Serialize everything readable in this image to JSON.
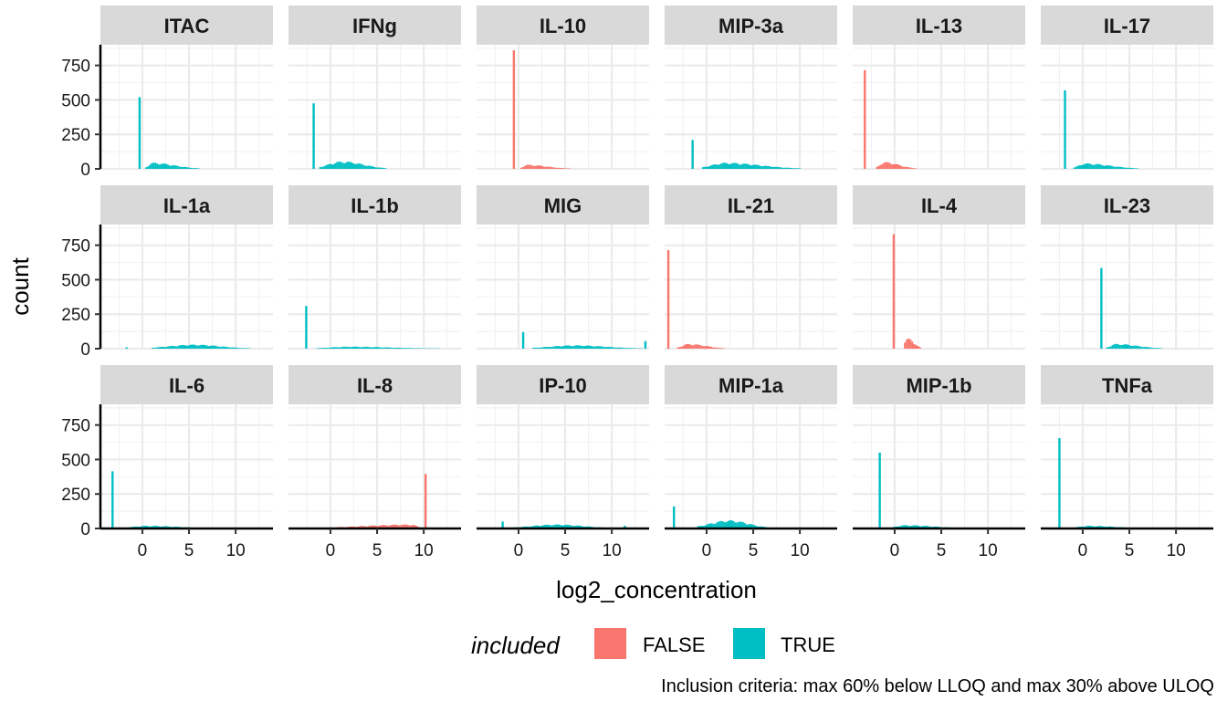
{
  "chart_data": {
    "type": "bar",
    "subtype": "faceted histogram",
    "xlabel": "log2_concentration",
    "ylabel": "count",
    "xlim": [
      -4.5,
      14
    ],
    "ylim": [
      0,
      900
    ],
    "x_ticks": [
      0,
      5,
      10
    ],
    "y_ticks": [
      0,
      250,
      500,
      750
    ],
    "x_tick_labels": [
      "0",
      "5",
      "10"
    ],
    "y_tick_labels": [
      "0",
      "250",
      "500",
      "750"
    ],
    "grid": true,
    "legend": {
      "title": "included",
      "position": "bottom",
      "entries": [
        {
          "label": "FALSE",
          "color": "#F8766D"
        },
        {
          "label": "TRUE",
          "color": "#00BFC4"
        }
      ]
    },
    "caption": "Inclusion criteria: max 60% below LLOQ and max 30% above ULOQ",
    "facets": [
      {
        "name": "ITAC",
        "included": true,
        "spikes": [
          {
            "x": -0.3,
            "count": 520
          }
        ],
        "body": {
          "from": 0.3,
          "to": 6,
          "peak": 45,
          "center": 1.0
        }
      },
      {
        "name": "IFNg",
        "included": true,
        "spikes": [
          {
            "x": -1.8,
            "count": 475
          }
        ],
        "body": {
          "from": -1.2,
          "to": 6,
          "peak": 55,
          "center": 1.2
        }
      },
      {
        "name": "IL-10",
        "included": false,
        "spikes": [
          {
            "x": -0.5,
            "count": 860
          }
        ],
        "body": {
          "from": 0.2,
          "to": 5.5,
          "peak": 30,
          "center": 0.8
        }
      },
      {
        "name": "MIP-3a",
        "included": true,
        "spikes": [
          {
            "x": -1.5,
            "count": 210
          }
        ],
        "body": {
          "from": -0.5,
          "to": 10,
          "peak": 45,
          "center": 2.0
        }
      },
      {
        "name": "IL-13",
        "included": false,
        "spikes": [
          {
            "x": -3.2,
            "count": 715
          }
        ],
        "body": {
          "from": -2.0,
          "to": 2.2,
          "peak": 50,
          "center": -1.2
        }
      },
      {
        "name": "IL-17",
        "included": true,
        "spikes": [
          {
            "x": -1.9,
            "count": 570
          }
        ],
        "body": {
          "from": -1.0,
          "to": 6,
          "peak": 40,
          "center": 0.2
        }
      },
      {
        "name": "IL-1a",
        "included": true,
        "spikes": [
          {
            "x": -1.7,
            "count": 10
          }
        ],
        "body": {
          "from": 1.0,
          "to": 11.5,
          "peak": 30,
          "center": 5.5
        }
      },
      {
        "name": "IL-1b",
        "included": true,
        "spikes": [
          {
            "x": -2.6,
            "count": 310
          }
        ],
        "body": {
          "from": -1.5,
          "to": 11.5,
          "peak": 15,
          "center": 2.0
        }
      },
      {
        "name": "MIG",
        "included": true,
        "spikes": [
          {
            "x": 0.5,
            "count": 120
          },
          {
            "x": 13.6,
            "count": 55
          }
        ],
        "body": {
          "from": 1.5,
          "to": 13.2,
          "peak": 25,
          "center": 6.0
        }
      },
      {
        "name": "IL-21",
        "included": false,
        "spikes": [
          {
            "x": -4.1,
            "count": 715
          }
        ],
        "body": {
          "from": -3.2,
          "to": 2.0,
          "peak": 35,
          "center": -2.0
        }
      },
      {
        "name": "IL-4",
        "included": false,
        "spikes": [
          {
            "x": -0.1,
            "count": 830
          }
        ],
        "body": {
          "from": 1.0,
          "to": 2.8,
          "peak": 75,
          "center": 1.3
        }
      },
      {
        "name": "IL-23",
        "included": true,
        "spikes": [
          {
            "x": 2.0,
            "count": 585
          }
        ],
        "body": {
          "from": 2.5,
          "to": 8.5,
          "peak": 35,
          "center": 3.5
        }
      },
      {
        "name": "IL-6",
        "included": true,
        "spikes": [
          {
            "x": -3.2,
            "count": 415
          }
        ],
        "body": {
          "from": -2.3,
          "to": 8,
          "peak": 20,
          "center": 0.5
        }
      },
      {
        "name": "IL-8",
        "included": false,
        "spikes": [
          {
            "x": 10.2,
            "count": 395
          }
        ],
        "body": {
          "from": 0.0,
          "to": 10.0,
          "peak": 30,
          "center": 8.5
        }
      },
      {
        "name": "IP-10",
        "included": true,
        "spikes": [
          {
            "x": -1.7,
            "count": 50
          },
          {
            "x": 11.4,
            "count": 20
          }
        ],
        "body": {
          "from": -0.5,
          "to": 10.5,
          "peak": 30,
          "center": 4.0
        }
      },
      {
        "name": "MIP-1a",
        "included": true,
        "spikes": [
          {
            "x": -3.5,
            "count": 160
          }
        ],
        "body": {
          "from": -1.0,
          "to": 7,
          "peak": 60,
          "center": 2.3
        }
      },
      {
        "name": "MIP-1b",
        "included": true,
        "spikes": [
          {
            "x": -1.6,
            "count": 550
          }
        ],
        "body": {
          "from": -0.5,
          "to": 8,
          "peak": 25,
          "center": 1.0
        }
      },
      {
        "name": "TNFa",
        "included": true,
        "spikes": [
          {
            "x": -2.5,
            "count": 655
          }
        ],
        "body": {
          "from": -1.2,
          "to": 7,
          "peak": 20,
          "center": 0.5
        }
      }
    ]
  }
}
